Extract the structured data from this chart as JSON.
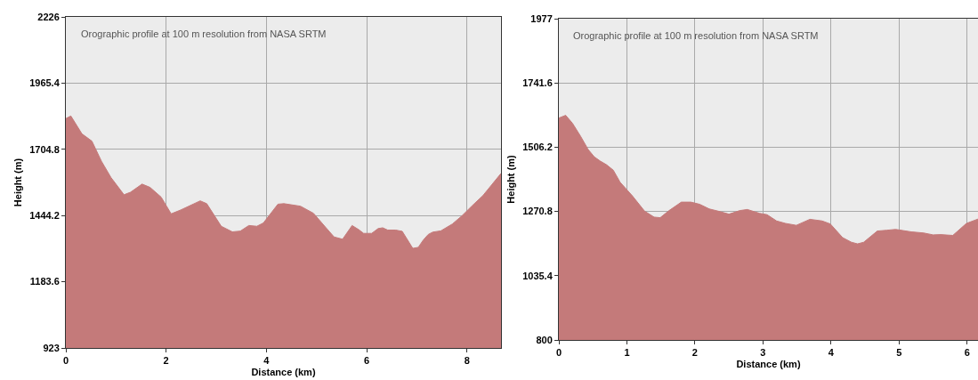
{
  "chart_data": [
    {
      "type": "area",
      "xlabel": "Distance (km)",
      "ylabel": "Height (m)",
      "annotations": [
        "Orographic profile at 100 m resolution from NASA SRTM"
      ],
      "grid": true,
      "xlim": [
        0,
        8.68
      ],
      "xticks": [
        0,
        2,
        4,
        6,
        8
      ],
      "ylim": [
        923,
        2226
      ],
      "yticks": [
        923,
        1183.6,
        1444.2,
        1704.8,
        1965.4,
        2226
      ],
      "x": [
        0,
        0.1,
        0.32,
        0.52,
        0.71,
        0.9,
        1.16,
        1.29,
        1.52,
        1.68,
        1.9,
        2.1,
        2.29,
        2.68,
        2.81,
        3.1,
        3.32,
        3.48,
        3.65,
        3.81,
        3.94,
        4.23,
        4.35,
        4.68,
        4.94,
        5.19,
        5.35,
        5.52,
        5.71,
        5.84,
        5.94,
        6.1,
        6.23,
        6.32,
        6.42,
        6.58,
        6.71,
        6.92,
        7.03,
        7.13,
        7.23,
        7.32,
        7.48,
        7.71,
        7.9,
        8.1,
        8.32,
        8.68
      ],
      "series": [
        {
          "color": "#c47a7a",
          "values": [
            1826,
            1836,
            1766,
            1737,
            1658,
            1594,
            1526,
            1536,
            1568,
            1555,
            1517,
            1451,
            1466,
            1502,
            1491,
            1402,
            1380,
            1383,
            1405,
            1402,
            1415,
            1489,
            1491,
            1481,
            1453,
            1396,
            1360,
            1351,
            1405,
            1389,
            1374,
            1374,
            1393,
            1396,
            1387,
            1387,
            1382,
            1315,
            1319,
            1348,
            1370,
            1379,
            1384,
            1411,
            1443,
            1482,
            1523,
            1610
          ]
        }
      ]
    },
    {
      "type": "area",
      "xlabel": "Distance (km)",
      "ylabel": "Height (m)",
      "annotations": [
        "Orographic profile at 100 m resolution from NASA SRTM"
      ],
      "grid": true,
      "xlim": [
        0,
        6.16
      ],
      "xticks": [
        0,
        1,
        2,
        3,
        4,
        5,
        6
      ],
      "ylim": [
        800,
        1977
      ],
      "yticks": [
        800,
        1035.4,
        1270.8,
        1506.2,
        1741.6,
        1977
      ],
      "x": [
        0,
        0.1,
        0.2,
        0.32,
        0.43,
        0.52,
        0.61,
        0.7,
        0.8,
        0.9,
        1.08,
        1.26,
        1.4,
        1.49,
        1.62,
        1.8,
        1.94,
        2.07,
        2.21,
        2.34,
        2.5,
        2.66,
        2.77,
        2.95,
        3.06,
        3.2,
        3.33,
        3.49,
        3.69,
        3.87,
        3.99,
        4.17,
        4.3,
        4.39,
        4.48,
        4.68,
        4.82,
        4.95,
        5.18,
        5.36,
        5.5,
        5.61,
        5.79,
        5.99,
        6.16
      ],
      "series": [
        {
          "color": "#c47a7a",
          "values": [
            1613,
            1623,
            1594,
            1546,
            1498,
            1471,
            1455,
            1442,
            1422,
            1378,
            1328,
            1272,
            1250,
            1248,
            1274,
            1305,
            1305,
            1297,
            1280,
            1272,
            1261,
            1274,
            1278,
            1264,
            1259,
            1236,
            1227,
            1220,
            1242,
            1236,
            1225,
            1175,
            1158,
            1152,
            1158,
            1199,
            1202,
            1205,
            1196,
            1192,
            1185,
            1186,
            1183,
            1227,
            1243
          ]
        }
      ]
    }
  ]
}
